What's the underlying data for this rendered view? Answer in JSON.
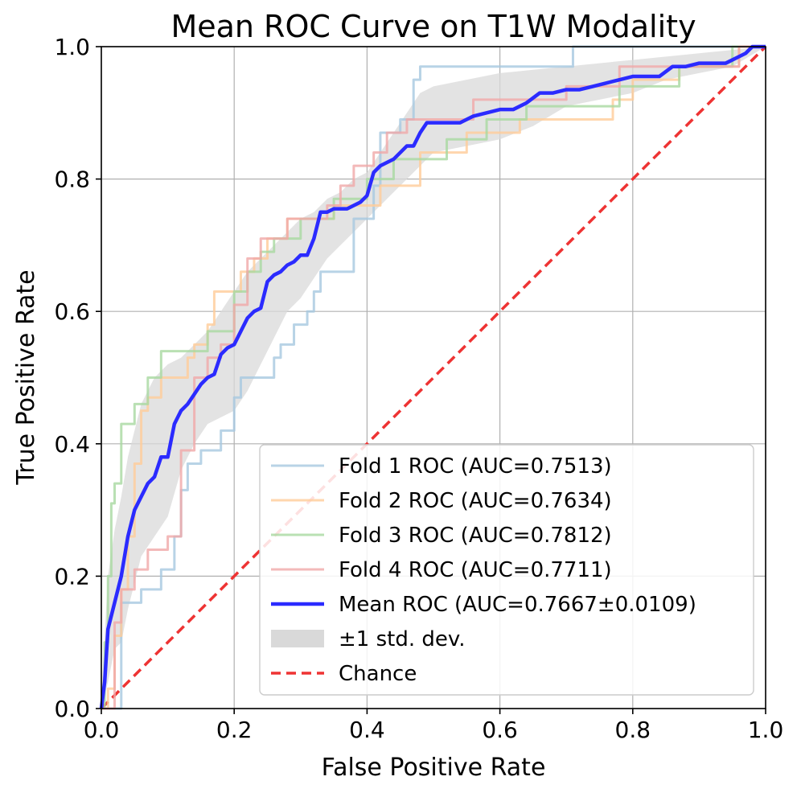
{
  "chart_data": {
    "type": "line",
    "title": "Mean ROC Curve on T1W Modality",
    "xlabel": "False Positive Rate",
    "ylabel": "True Positive Rate",
    "xlim": [
      0.0,
      1.0
    ],
    "ylim": [
      0.0,
      1.0
    ],
    "grid": true,
    "legend_position": "lower-right",
    "xticks": [
      "0.0",
      "0.2",
      "0.4",
      "0.6",
      "0.8",
      "1.0"
    ],
    "yticks": [
      "0.0",
      "0.2",
      "0.4",
      "0.6",
      "0.8",
      "1.0"
    ],
    "xtick_values": [
      0.0,
      0.2,
      0.4,
      0.6,
      0.8,
      1.0
    ],
    "ytick_values": [
      0.0,
      0.2,
      0.4,
      0.6,
      0.8,
      1.0
    ],
    "series": [
      {
        "name": "Fold 1 ROC (AUC=0.7513)",
        "color": "#a6c8e0",
        "style": "step",
        "x": [
          0,
          0.03,
          0.03,
          0.06,
          0.06,
          0.09,
          0.09,
          0.11,
          0.11,
          0.12,
          0.12,
          0.13,
          0.13,
          0.15,
          0.15,
          0.18,
          0.18,
          0.2,
          0.2,
          0.21,
          0.21,
          0.26,
          0.26,
          0.27,
          0.27,
          0.29,
          0.29,
          0.31,
          0.31,
          0.32,
          0.32,
          0.33,
          0.33,
          0.38,
          0.38,
          0.41,
          0.41,
          0.42,
          0.42,
          0.45,
          0.45,
          0.47,
          0.47,
          0.48,
          0.48,
          0.5,
          0.5,
          0.71,
          0.71,
          1.0
        ],
        "y": [
          0,
          0,
          0.16,
          0.16,
          0.18,
          0.18,
          0.21,
          0.21,
          0.26,
          0.26,
          0.33,
          0.33,
          0.37,
          0.37,
          0.39,
          0.39,
          0.42,
          0.42,
          0.47,
          0.47,
          0.5,
          0.5,
          0.53,
          0.53,
          0.55,
          0.55,
          0.58,
          0.58,
          0.6,
          0.6,
          0.63,
          0.63,
          0.66,
          0.66,
          0.74,
          0.74,
          0.79,
          0.79,
          0.87,
          0.87,
          0.89,
          0.89,
          0.95,
          0.95,
          0.97,
          0.97,
          0.97,
          0.97,
          1.0,
          1.0
        ]
      },
      {
        "name": "Fold 2 ROC (AUC=0.7634)",
        "color": "#ffcc99",
        "style": "step",
        "x": [
          0,
          0.01,
          0.01,
          0.02,
          0.02,
          0.03,
          0.03,
          0.04,
          0.04,
          0.05,
          0.05,
          0.06,
          0.06,
          0.07,
          0.07,
          0.09,
          0.09,
          0.11,
          0.11,
          0.13,
          0.13,
          0.14,
          0.14,
          0.16,
          0.16,
          0.17,
          0.17,
          0.19,
          0.19,
          0.21,
          0.21,
          0.23,
          0.23,
          0.25,
          0.25,
          0.28,
          0.28,
          0.31,
          0.31,
          0.35,
          0.35,
          0.38,
          0.38,
          0.42,
          0.42,
          0.45,
          0.45,
          0.48,
          0.48,
          0.52,
          0.52,
          0.55,
          0.55,
          0.59,
          0.59,
          0.63,
          0.63,
          0.66,
          0.66,
          0.77,
          0.77,
          0.8,
          0.8,
          0.87,
          0.87,
          0.96,
          0.96,
          1.0
        ],
        "y": [
          0,
          0,
          0.03,
          0.03,
          0.11,
          0.11,
          0.18,
          0.18,
          0.26,
          0.26,
          0.37,
          0.37,
          0.45,
          0.45,
          0.47,
          0.47,
          0.5,
          0.5,
          0.5,
          0.5,
          0.53,
          0.53,
          0.55,
          0.55,
          0.58,
          0.58,
          0.63,
          0.63,
          0.63,
          0.63,
          0.66,
          0.66,
          0.68,
          0.68,
          0.71,
          0.71,
          0.74,
          0.74,
          0.74,
          0.74,
          0.76,
          0.76,
          0.76,
          0.76,
          0.79,
          0.79,
          0.79,
          0.79,
          0.84,
          0.84,
          0.84,
          0.84,
          0.87,
          0.87,
          0.87,
          0.87,
          0.89,
          0.89,
          0.89,
          0.89,
          0.92,
          0.92,
          0.95,
          0.95,
          0.97,
          0.97,
          1.0,
          1.0
        ]
      },
      {
        "name": "Fold 3 ROC (AUC=0.7812)",
        "color": "#a8d8a0",
        "style": "step",
        "x": [
          0,
          0.005,
          0.005,
          0.01,
          0.01,
          0.015,
          0.015,
          0.02,
          0.02,
          0.03,
          0.03,
          0.05,
          0.05,
          0.07,
          0.07,
          0.09,
          0.09,
          0.14,
          0.14,
          0.16,
          0.16,
          0.2,
          0.2,
          0.22,
          0.22,
          0.24,
          0.24,
          0.26,
          0.26,
          0.3,
          0.3,
          0.33,
          0.33,
          0.35,
          0.35,
          0.4,
          0.4,
          0.44,
          0.44,
          0.48,
          0.48,
          0.52,
          0.52,
          0.55,
          0.55,
          0.58,
          0.58,
          0.6,
          0.6,
          0.64,
          0.64,
          0.69,
          0.69,
          0.78,
          0.78,
          0.86,
          0.86,
          0.87,
          0.87,
          0.95,
          0.95,
          1.0
        ],
        "y": [
          0,
          0,
          0.1,
          0.1,
          0.2,
          0.2,
          0.31,
          0.31,
          0.34,
          0.34,
          0.43,
          0.43,
          0.46,
          0.46,
          0.5,
          0.5,
          0.54,
          0.54,
          0.54,
          0.54,
          0.57,
          0.57,
          0.63,
          0.63,
          0.66,
          0.66,
          0.69,
          0.69,
          0.71,
          0.71,
          0.74,
          0.74,
          0.74,
          0.74,
          0.77,
          0.77,
          0.8,
          0.8,
          0.83,
          0.83,
          0.83,
          0.83,
          0.86,
          0.86,
          0.86,
          0.86,
          0.89,
          0.89,
          0.89,
          0.89,
          0.91,
          0.91,
          0.91,
          0.91,
          0.94,
          0.94,
          0.94,
          0.94,
          0.97,
          0.97,
          1.0,
          1.0
        ]
      },
      {
        "name": "Fold 4 ROC (AUC=0.7711)",
        "color": "#f0a8a8",
        "style": "step",
        "x": [
          0,
          0.02,
          0.02,
          0.03,
          0.03,
          0.05,
          0.05,
          0.07,
          0.07,
          0.09,
          0.09,
          0.1,
          0.1,
          0.12,
          0.12,
          0.14,
          0.14,
          0.16,
          0.16,
          0.18,
          0.18,
          0.2,
          0.2,
          0.22,
          0.22,
          0.24,
          0.24,
          0.28,
          0.28,
          0.31,
          0.31,
          0.33,
          0.33,
          0.34,
          0.34,
          0.36,
          0.36,
          0.38,
          0.38,
          0.41,
          0.41,
          0.43,
          0.43,
          0.46,
          0.46,
          0.49,
          0.49,
          0.52,
          0.52,
          0.56,
          0.56,
          0.6,
          0.6,
          0.64,
          0.64,
          0.7,
          0.7,
          0.78,
          0.78,
          0.86,
          0.86,
          0.96,
          0.96,
          1.0
        ],
        "y": [
          0,
          0,
          0.13,
          0.13,
          0.18,
          0.18,
          0.21,
          0.21,
          0.24,
          0.24,
          0.24,
          0.24,
          0.26,
          0.26,
          0.39,
          0.39,
          0.5,
          0.5,
          0.53,
          0.53,
          0.55,
          0.55,
          0.61,
          0.61,
          0.68,
          0.68,
          0.71,
          0.71,
          0.74,
          0.74,
          0.74,
          0.74,
          0.74,
          0.74,
          0.76,
          0.76,
          0.79,
          0.79,
          0.82,
          0.82,
          0.84,
          0.84,
          0.87,
          0.87,
          0.89,
          0.89,
          0.89,
          0.89,
          0.89,
          0.89,
          0.92,
          0.92,
          0.92,
          0.92,
          0.92,
          0.92,
          0.94,
          0.94,
          0.97,
          0.97,
          0.97,
          0.97,
          1.0,
          1.0
        ]
      },
      {
        "name": "Mean ROC (AUC=0.7667±0.0109)",
        "color": "#2b2bff",
        "style": "line",
        "x": [
          0,
          0.005,
          0.01,
          0.02,
          0.03,
          0.04,
          0.05,
          0.06,
          0.07,
          0.08,
          0.09,
          0.1,
          0.11,
          0.12,
          0.13,
          0.14,
          0.15,
          0.16,
          0.17,
          0.18,
          0.19,
          0.2,
          0.21,
          0.22,
          0.23,
          0.24,
          0.25,
          0.26,
          0.27,
          0.28,
          0.29,
          0.3,
          0.31,
          0.32,
          0.33,
          0.34,
          0.35,
          0.36,
          0.37,
          0.38,
          0.39,
          0.4,
          0.41,
          0.42,
          0.43,
          0.44,
          0.45,
          0.46,
          0.47,
          0.48,
          0.49,
          0.5,
          0.52,
          0.54,
          0.56,
          0.58,
          0.6,
          0.62,
          0.64,
          0.66,
          0.68,
          0.7,
          0.72,
          0.74,
          0.76,
          0.78,
          0.8,
          0.82,
          0.84,
          0.86,
          0.88,
          0.9,
          0.92,
          0.94,
          0.96,
          0.97,
          0.98,
          1.0
        ],
        "y": [
          0.0,
          0.04,
          0.12,
          0.16,
          0.2,
          0.26,
          0.3,
          0.32,
          0.34,
          0.35,
          0.38,
          0.38,
          0.43,
          0.45,
          0.46,
          0.475,
          0.49,
          0.5,
          0.505,
          0.535,
          0.545,
          0.55,
          0.57,
          0.59,
          0.6,
          0.605,
          0.645,
          0.655,
          0.66,
          0.67,
          0.675,
          0.685,
          0.685,
          0.71,
          0.75,
          0.75,
          0.755,
          0.755,
          0.755,
          0.76,
          0.765,
          0.775,
          0.81,
          0.82,
          0.825,
          0.83,
          0.84,
          0.85,
          0.85,
          0.87,
          0.885,
          0.885,
          0.885,
          0.885,
          0.895,
          0.9,
          0.905,
          0.905,
          0.915,
          0.93,
          0.93,
          0.935,
          0.935,
          0.94,
          0.945,
          0.95,
          0.955,
          0.955,
          0.955,
          0.97,
          0.97,
          0.975,
          0.975,
          0.975,
          0.985,
          0.99,
          1.0,
          1.0
        ]
      }
    ],
    "std_band": {
      "name": "±1 std. dev.",
      "color": "#d9d9d9",
      "x": [
        0,
        0.01,
        0.02,
        0.03,
        0.04,
        0.05,
        0.06,
        0.08,
        0.1,
        0.12,
        0.14,
        0.16,
        0.18,
        0.2,
        0.22,
        0.24,
        0.26,
        0.28,
        0.3,
        0.32,
        0.34,
        0.36,
        0.38,
        0.4,
        0.42,
        0.44,
        0.46,
        0.48,
        0.5,
        0.55,
        0.6,
        0.65,
        0.7,
        0.75,
        0.8,
        0.85,
        0.9,
        0.95,
        1.0
      ],
      "lower": [
        0,
        0.04,
        0.09,
        0.1,
        0.15,
        0.19,
        0.23,
        0.26,
        0.29,
        0.36,
        0.4,
        0.43,
        0.44,
        0.45,
        0.48,
        0.52,
        0.56,
        0.6,
        0.62,
        0.65,
        0.68,
        0.7,
        0.72,
        0.74,
        0.76,
        0.78,
        0.8,
        0.82,
        0.84,
        0.85,
        0.86,
        0.88,
        0.91,
        0.92,
        0.93,
        0.95,
        0.96,
        0.97,
        1.0
      ],
      "upper": [
        0.02,
        0.2,
        0.27,
        0.32,
        0.38,
        0.42,
        0.46,
        0.5,
        0.52,
        0.53,
        0.55,
        0.57,
        0.6,
        0.63,
        0.66,
        0.68,
        0.7,
        0.72,
        0.74,
        0.75,
        0.77,
        0.78,
        0.8,
        0.81,
        0.84,
        0.87,
        0.9,
        0.93,
        0.94,
        0.95,
        0.96,
        0.965,
        0.97,
        0.975,
        0.98,
        0.985,
        0.99,
        0.995,
        1.0
      ]
    },
    "chance": {
      "name": "Chance",
      "color": "#ee3333",
      "x": [
        0,
        1
      ],
      "y": [
        0,
        1
      ]
    },
    "legend_entries": [
      "Fold 1 ROC (AUC=0.7513)",
      "Fold 2 ROC (AUC=0.7634)",
      "Fold 3 ROC (AUC=0.7812)",
      "Fold 4 ROC (AUC=0.7711)",
      "Mean ROC (AUC=0.7667±0.0109)",
      "±1 std. dev.",
      "Chance"
    ]
  }
}
